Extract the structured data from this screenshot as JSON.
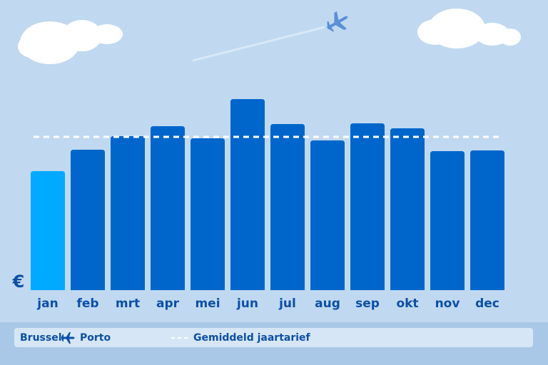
{
  "chart_data": {
    "type": "bar",
    "categories": [
      "jan",
      "feb",
      "mrt",
      "apr",
      "mei",
      "jun",
      "jul",
      "aug",
      "sep",
      "okt",
      "nov",
      "dec"
    ],
    "values": [
      167,
      197,
      216,
      230,
      213,
      268,
      233,
      210,
      234,
      227,
      195,
      196
    ],
    "colors": [
      "#00aaff",
      "#0066cc",
      "#0066cc",
      "#0066cc",
      "#0066cc",
      "#0066cc",
      "#0066cc",
      "#0066cc",
      "#0066cc",
      "#0066cc",
      "#0066cc",
      "#0066cc"
    ],
    "ylim": [
      0,
      270
    ],
    "average": {
      "value": 215,
      "label": "Gemiddeld jaartarief",
      "color": "#ffffff"
    },
    "currency": "€",
    "route": {
      "from": "Brussel",
      "to": "Porto"
    }
  }
}
